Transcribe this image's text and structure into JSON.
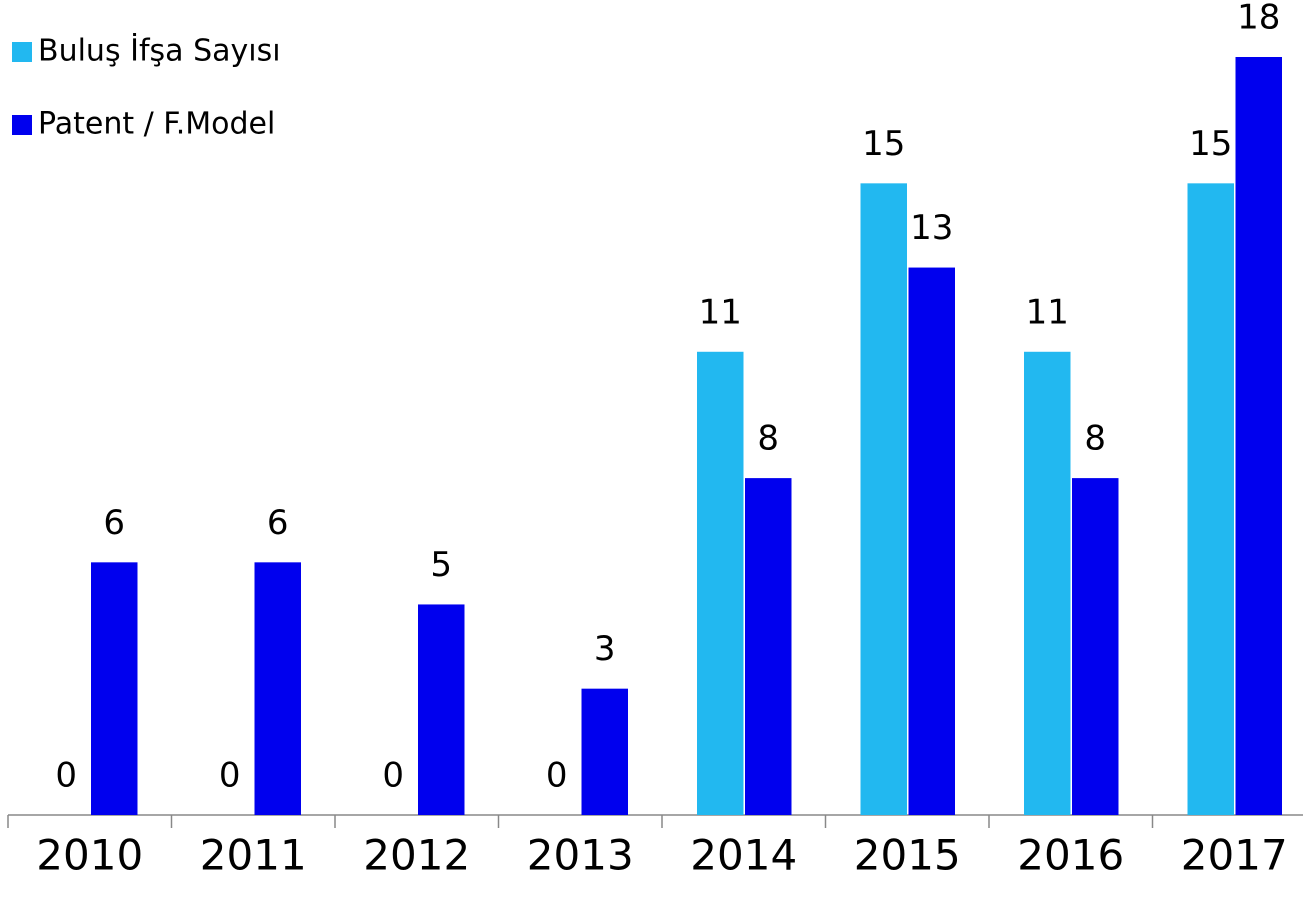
{
  "chart_data": {
    "type": "bar",
    "categories": [
      "2010",
      "2011",
      "2012",
      "2013",
      "2014",
      "2015",
      "2016",
      "2017"
    ],
    "series": [
      {
        "name": "Buluş İfşa Sayısı",
        "color": "#22b8f0",
        "values": [
          0,
          0,
          0,
          0,
          11,
          15,
          11,
          15
        ]
      },
      {
        "name": "Patent / F.Model",
        "color": "#0000ee",
        "values": [
          6,
          6,
          5,
          3,
          8,
          13,
          8,
          18
        ]
      }
    ],
    "ylim": [
      0,
      18
    ],
    "legend": "top-left"
  }
}
